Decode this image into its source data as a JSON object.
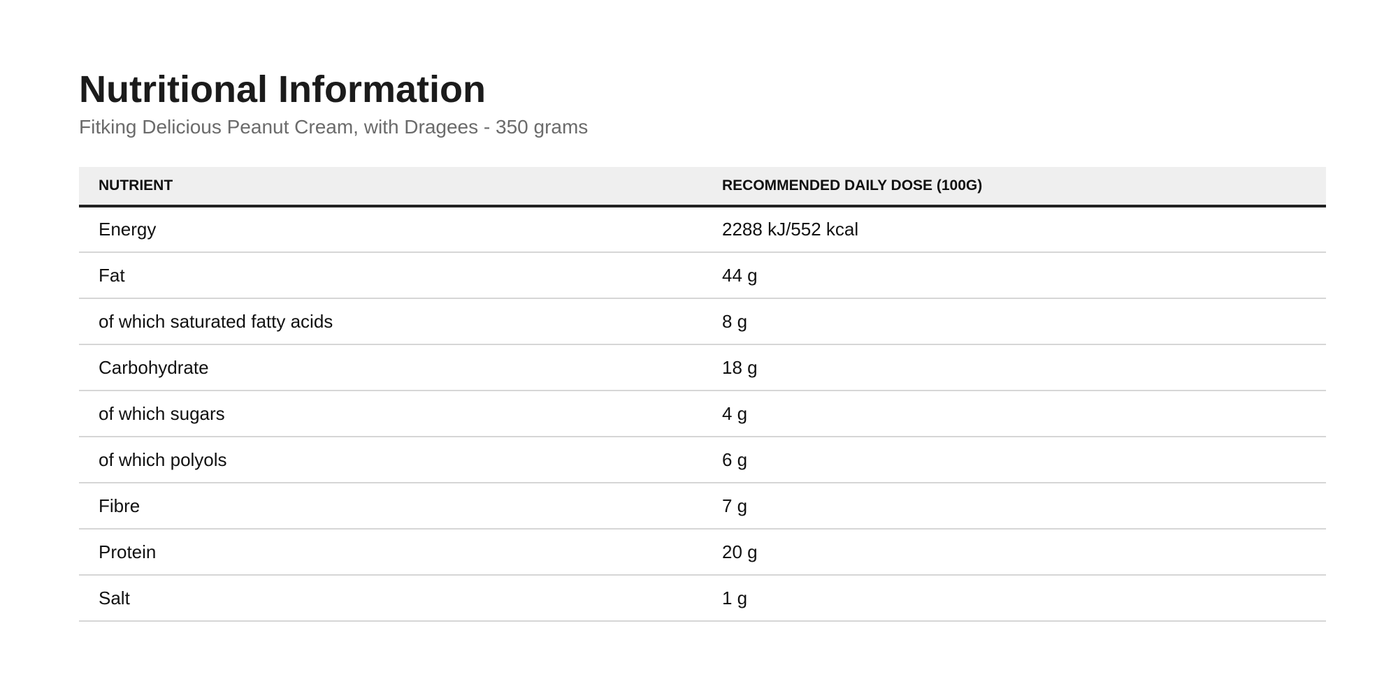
{
  "page": {
    "title": "Nutritional Information",
    "subtitle": "Fitking Delicious Peanut Cream, with Dragees - 350 grams"
  },
  "table": {
    "columns": [
      "NUTRIENT",
      "RECOMMENDED DAILY DOSE (100G)"
    ],
    "rows": [
      [
        "Energy",
        "2288 kJ/552 kcal"
      ],
      [
        "Fat",
        "44 g"
      ],
      [
        "of which saturated fatty acids",
        "8 g"
      ],
      [
        "Carbohydrate",
        "18 g"
      ],
      [
        "of which sugars",
        "4 g"
      ],
      [
        "of which polyols",
        "6 g"
      ],
      [
        "Fibre",
        "7 g"
      ],
      [
        "Protein",
        "20 g"
      ],
      [
        "Salt",
        "1 g"
      ]
    ]
  },
  "colors": {
    "header_background": "#efefef",
    "header_rule": "#222222",
    "row_rule": "#d6d6d6",
    "subtitle_text": "#6b6b6b"
  }
}
